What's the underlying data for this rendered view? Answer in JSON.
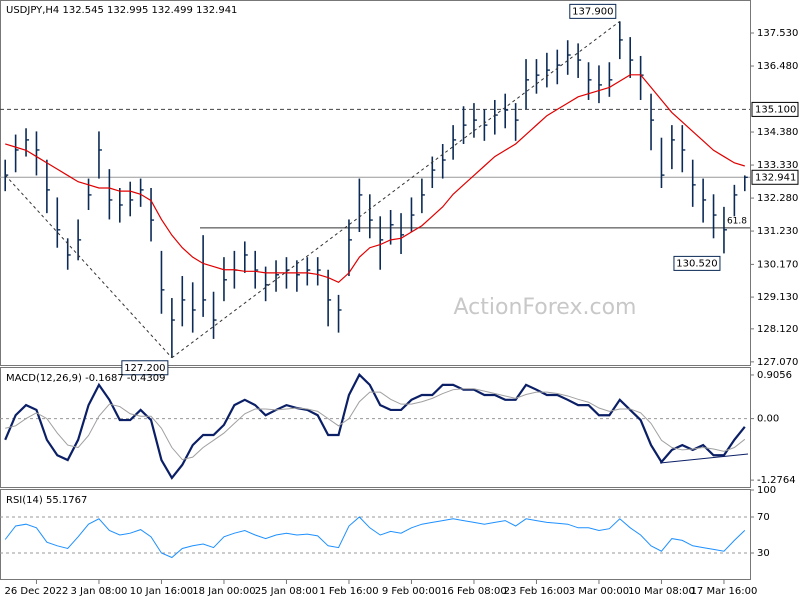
{
  "chart_data": [
    {
      "type": "ohlc",
      "title": "USDJPY,H4  132.545 132.995 132.499 132.941",
      "categories": [
        null,
        null,
        null,
        "26 Dec 2022",
        null,
        null,
        null,
        null,
        null,
        "3 Jan 08:00",
        null,
        null,
        null,
        null,
        null,
        "10 Jan 16:00",
        null,
        null,
        null,
        null,
        null,
        "18 Jan 00:00",
        null,
        null,
        null,
        null,
        null,
        "25 Jan 08:00",
        null,
        null,
        null,
        null,
        null,
        "1 Feb 16:00",
        null,
        null,
        null,
        null,
        null,
        "9 Feb 00:00",
        null,
        null,
        null,
        null,
        null,
        "16 Feb 08:00",
        null,
        null,
        null,
        null,
        null,
        "23 Feb 16:00",
        null,
        null,
        null,
        null,
        null,
        "3 Mar 00:00",
        null,
        null,
        null,
        null,
        null,
        "10 Mar 08:00",
        null,
        null,
        null,
        null,
        null,
        "17 Mar 16:00",
        null,
        null
      ],
      "high": [
        133.5,
        134.3,
        134.5,
        134.4,
        133.5,
        132.3,
        131.0,
        131.6,
        132.9,
        134.4,
        133.2,
        132.6,
        132.8,
        132.9,
        132.6,
        130.6,
        129.1,
        129.8,
        129.6,
        131.1,
        129.3,
        130.4,
        130.6,
        130.9,
        130.6,
        130.1,
        130.3,
        130.4,
        130.3,
        130.4,
        130.4,
        130.0,
        129.2,
        131.6,
        132.9,
        132.4,
        131.7,
        131.9,
        131.8,
        132.3,
        132.9,
        133.6,
        134.0,
        134.6,
        135.2,
        135.3,
        135.1,
        135.4,
        135.6,
        135.3,
        136.7,
        136.7,
        136.9,
        137.0,
        137.3,
        137.2,
        136.6,
        136.5,
        136.6,
        137.9,
        137.4,
        136.8,
        135.6,
        134.2,
        134.6,
        134.6,
        133.5,
        132.9,
        132.4,
        132.0,
        132.7,
        133.0
      ],
      "low": [
        132.5,
        133.1,
        133.6,
        133.0,
        131.8,
        130.7,
        130.0,
        130.3,
        131.9,
        132.9,
        131.6,
        131.5,
        131.7,
        132.0,
        130.9,
        128.6,
        127.2,
        128.2,
        128.0,
        128.5,
        127.8,
        129.0,
        129.4,
        129.9,
        129.4,
        129.0,
        129.3,
        129.4,
        129.3,
        129.5,
        129.5,
        128.2,
        128.0,
        129.8,
        131.2,
        131.0,
        130.0,
        130.8,
        130.5,
        131.2,
        131.8,
        132.6,
        132.9,
        133.5,
        134.0,
        134.2,
        134.1,
        134.3,
        134.5,
        134.1,
        135.1,
        135.6,
        135.8,
        135.9,
        136.2,
        136.1,
        135.4,
        135.3,
        135.5,
        136.7,
        136.1,
        135.4,
        133.8,
        132.6,
        133.2,
        133.1,
        132.0,
        131.5,
        131.0,
        130.52,
        131.7,
        132.5
      ],
      "close": [
        133.01,
        133.81,
        134.13,
        133.81,
        132.54,
        131.27,
        130.47,
        130.95,
        132.38,
        133.81,
        132.22,
        132.06,
        132.22,
        132.54,
        131.58,
        129.36,
        128.4,
        129.04,
        128.72,
        129.04,
        128.4,
        129.68,
        129.99,
        130.47,
        129.99,
        129.52,
        129.84,
        129.99,
        129.84,
        129.99,
        129.99,
        129.04,
        128.72,
        130.95,
        132.38,
        131.58,
        130.95,
        131.43,
        131.11,
        131.74,
        132.38,
        133.17,
        133.49,
        134.13,
        134.6,
        134.76,
        134.6,
        134.92,
        135.08,
        134.76,
        136.04,
        136.19,
        136.35,
        136.51,
        136.83,
        136.67,
        136.04,
        135.88,
        136.04,
        137.31,
        136.67,
        136.19,
        134.76,
        133.01,
        134.13,
        133.81,
        132.7,
        132.22,
        131.74,
        131.27,
        132.38,
        132.94
      ],
      "color": "#0b2a55",
      "overlay": {
        "color": "#e00000",
        "values": [
          134.0,
          133.9,
          133.8,
          133.6,
          133.4,
          133.2,
          133.0,
          132.8,
          132.7,
          132.6,
          132.6,
          132.5,
          132.5,
          132.4,
          132.2,
          131.6,
          131.1,
          130.7,
          130.4,
          130.2,
          130.1,
          130.0,
          130.0,
          129.95,
          129.95,
          129.9,
          129.9,
          129.9,
          129.9,
          129.9,
          129.85,
          129.75,
          129.6,
          129.9,
          130.4,
          130.7,
          130.8,
          130.95,
          131.0,
          131.2,
          131.4,
          131.7,
          132.0,
          132.4,
          132.7,
          133.0,
          133.3,
          133.6,
          133.8,
          134.0,
          134.3,
          134.6,
          134.9,
          135.1,
          135.3,
          135.5,
          135.6,
          135.7,
          135.8,
          136.0,
          136.2,
          136.2,
          135.8,
          135.4,
          135.0,
          134.7,
          134.4,
          134.1,
          133.8,
          133.6,
          133.4,
          133.3
        ]
      },
      "ylim": [
        126.97,
        138.58
      ],
      "yticks": [
        {
          "value": 137.53,
          "label": "137.530"
        },
        {
          "value": 136.48,
          "label": "136.480"
        },
        {
          "value": 134.38,
          "label": "134.380"
        },
        {
          "value": 133.33,
          "label": "133.330"
        },
        {
          "value": 132.28,
          "label": "132.280"
        },
        {
          "value": 131.23,
          "label": "131.230"
        },
        {
          "value": 130.17,
          "label": "130.170"
        },
        {
          "value": 129.13,
          "label": "129.130"
        },
        {
          "value": 128.12,
          "label": "128.120"
        },
        {
          "value": 127.07,
          "label": "127.070"
        }
      ],
      "levels": [
        {
          "value": 135.1,
          "label": "135.100",
          "style": "dashed"
        },
        {
          "value": 132.941,
          "label": "132.941",
          "style": "solid"
        }
      ],
      "fib": {
        "level": 61.8,
        "price": 131.33
      },
      "annotations": [
        {
          "value": 137.9,
          "label": "137.900"
        },
        {
          "value": 127.2,
          "label": "127.200"
        },
        {
          "value": 130.52,
          "label": "130.520"
        }
      ],
      "watermark": "ActionForex.com"
    },
    {
      "type": "line",
      "title": "MACD(12,26,9) -0.1687 -0.4309",
      "series": [
        {
          "color": "#0b1f66",
          "values": [
            -0.44,
            0.07,
            0.28,
            0.18,
            -0.44,
            -0.76,
            -0.86,
            -0.44,
            0.28,
            0.7,
            0.39,
            -0.03,
            -0.03,
            0.18,
            -0.03,
            -0.86,
            -1.23,
            -0.96,
            -0.55,
            -0.34,
            -0.34,
            -0.13,
            0.28,
            0.39,
            0.28,
            0.07,
            0.18,
            0.28,
            0.22,
            0.18,
            0.07,
            -0.34,
            -0.34,
            0.49,
            0.91,
            0.7,
            0.28,
            0.18,
            0.18,
            0.39,
            0.49,
            0.49,
            0.7,
            0.7,
            0.6,
            0.6,
            0.49,
            0.49,
            0.39,
            0.39,
            0.7,
            0.6,
            0.49,
            0.49,
            0.39,
            0.28,
            0.28,
            0.07,
            0.07,
            0.39,
            0.18,
            -0.03,
            -0.55,
            -0.9,
            -0.65,
            -0.55,
            -0.65,
            -0.55,
            -0.76,
            -0.76,
            -0.44,
            -0.17
          ]
        },
        {
          "color": "#a0a0a0",
          "values": [
            -0.2,
            -0.15,
            0.0,
            0.12,
            0.0,
            -0.3,
            -0.55,
            -0.6,
            -0.35,
            0.05,
            0.3,
            0.25,
            0.1,
            0.05,
            0.05,
            -0.2,
            -0.6,
            -0.85,
            -0.8,
            -0.6,
            -0.45,
            -0.3,
            -0.1,
            0.1,
            0.2,
            0.2,
            0.18,
            0.2,
            0.22,
            0.2,
            0.15,
            0.0,
            -0.15,
            0.0,
            0.35,
            0.55,
            0.55,
            0.4,
            0.3,
            0.3,
            0.35,
            0.42,
            0.52,
            0.6,
            0.62,
            0.62,
            0.57,
            0.52,
            0.47,
            0.42,
            0.5,
            0.55,
            0.55,
            0.52,
            0.47,
            0.4,
            0.34,
            0.22,
            0.15,
            0.2,
            0.2,
            0.12,
            -0.1,
            -0.45,
            -0.6,
            -0.65,
            -0.63,
            -0.6,
            -0.63,
            -0.68,
            -0.6,
            -0.43
          ]
        }
      ],
      "ylim": [
        -1.44,
        1.05
      ],
      "yticks": [
        0.9056,
        {
          "value": 0,
          "label": "0.00"
        },
        -1.2764
      ]
    },
    {
      "type": "line",
      "title": "RSI(14) 55.1767",
      "series": [
        {
          "color": "#1e90ff",
          "values": [
            45,
            60,
            62,
            58,
            42,
            38,
            35,
            48,
            62,
            68,
            55,
            50,
            52,
            56,
            48,
            30,
            25,
            35,
            38,
            40,
            36,
            48,
            52,
            55,
            50,
            46,
            50,
            52,
            50,
            51,
            49,
            38,
            36,
            60,
            70,
            58,
            50,
            54,
            52,
            58,
            62,
            64,
            66,
            68,
            66,
            64,
            62,
            64,
            66,
            60,
            68,
            66,
            64,
            63,
            62,
            58,
            58,
            55,
            57,
            68,
            58,
            50,
            38,
            32,
            46,
            44,
            38,
            36,
            34,
            32,
            44,
            55.18
          ]
        }
      ],
      "ylim": [
        0,
        100
      ],
      "yticks": [
        100,
        70,
        30
      ]
    }
  ]
}
